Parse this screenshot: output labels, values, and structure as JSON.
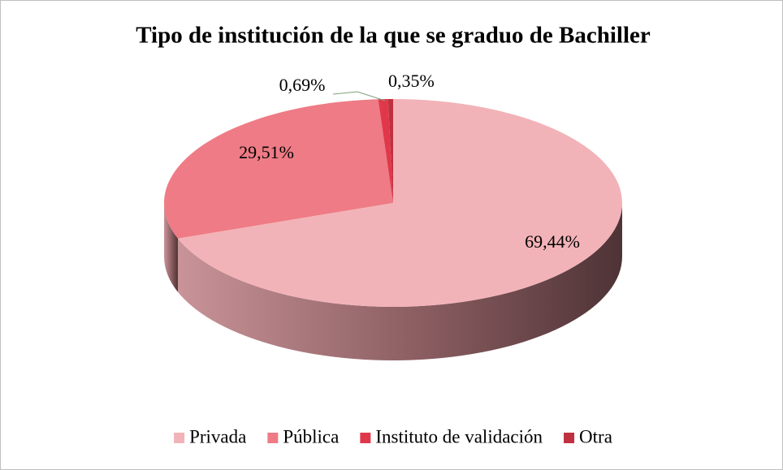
{
  "chart_data": {
    "type": "pie",
    "title": "Tipo de institución de la que se graduo de Bachiller",
    "categories": [
      "Privada",
      "Pública",
      "Instituto de validación",
      "Otra"
    ],
    "values": [
      69.44,
      29.51,
      0.69,
      0.35
    ],
    "value_labels": [
      "69,44%",
      "29,51%",
      "0,69%",
      "0,35%"
    ],
    "colors": [
      "#f2b3b8",
      "#ee7b85",
      "#e0384a",
      "#c0313f"
    ],
    "legend": "bottom"
  }
}
